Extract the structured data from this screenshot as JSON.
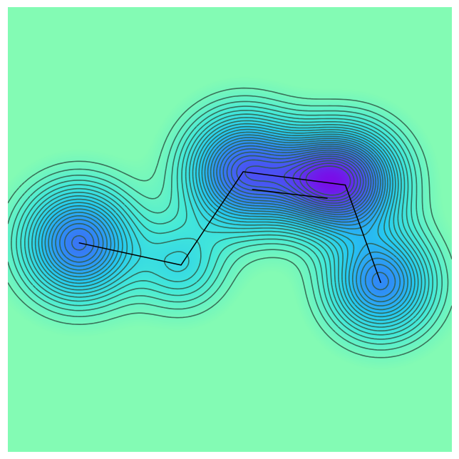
{
  "figure": {
    "background_color": "#83fbb4",
    "colormap": [
      "#83fbb4",
      "#45e9d8",
      "#26c9f0",
      "#2f8cf6",
      "#4a52f2",
      "#7a0de8"
    ],
    "contour_color": "#2f5a48",
    "path_color": "#000000"
  },
  "chart_data": {
    "type": "contour",
    "title": "",
    "xlabel": "",
    "ylabel": "",
    "xlim": [
      0,
      1
    ],
    "ylim": [
      0,
      1
    ],
    "grid": false,
    "legend": "none",
    "contour_style": "dashed",
    "contour_levels": 26,
    "wells": [
      {
        "x": 0.16,
        "y": 0.47,
        "depth": 0.9,
        "spread": 0.085
      },
      {
        "x": 0.39,
        "y": 0.42,
        "depth": 0.35,
        "spread": 0.07
      },
      {
        "x": 0.53,
        "y": 0.63,
        "depth": 1.0,
        "spread": 0.085
      },
      {
        "x": 0.68,
        "y": 0.61,
        "depth": 0.55,
        "spread": 0.07
      },
      {
        "x": 0.77,
        "y": 0.61,
        "depth": 1.0,
        "spread": 0.08
      },
      {
        "x": 0.84,
        "y": 0.38,
        "depth": 0.8,
        "spread": 0.08
      }
    ],
    "path": [
      {
        "x": 0.16,
        "y": 0.47
      },
      {
        "x": 0.39,
        "y": 0.42
      },
      {
        "x": 0.53,
        "y": 0.63
      },
      {
        "x": 0.76,
        "y": 0.6
      },
      {
        "x": 0.84,
        "y": 0.38
      }
    ],
    "path_branch": [
      {
        "x": 0.55,
        "y": 0.59
      },
      {
        "x": 0.72,
        "y": 0.57
      }
    ]
  }
}
